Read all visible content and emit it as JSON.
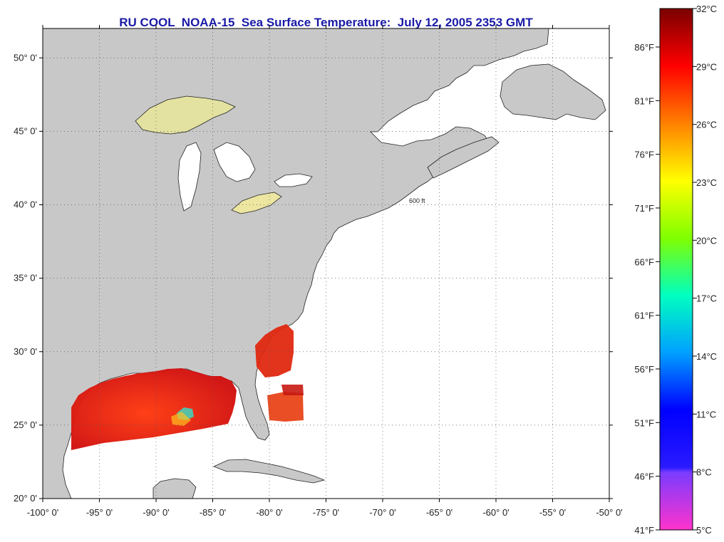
{
  "title": "RU COOL  NOAA-15  Sea Surface Temperature:  July 12, 2005 2353 GMT",
  "map": {
    "lon_range": [
      -100,
      -50
    ],
    "lat_range": [
      20,
      52
    ],
    "lat_ticks": [
      {
        "value": 50,
        "label": "50° 0'"
      },
      {
        "value": 45,
        "label": "45° 0'"
      },
      {
        "value": 40,
        "label": "40° 0'"
      },
      {
        "value": 35,
        "label": "35° 0'"
      },
      {
        "value": 30,
        "label": "30° 0'"
      },
      {
        "value": 25,
        "label": "25° 0'"
      },
      {
        "value": 20,
        "label": "20° 0'"
      }
    ],
    "lon_ticks": [
      {
        "value": -100,
        "label": "-100° 0'"
      },
      {
        "value": -95,
        "label": "-95° 0'"
      },
      {
        "value": -90,
        "label": "-90° 0'"
      },
      {
        "value": -85,
        "label": "-85° 0'"
      },
      {
        "value": -80,
        "label": "-80° 0'"
      },
      {
        "value": -75,
        "label": "-75° 0'"
      },
      {
        "value": -70,
        "label": "-70° 0'"
      },
      {
        "value": -65,
        "label": "-65° 0'"
      },
      {
        "value": -60,
        "label": "-60° 0'"
      },
      {
        "value": -55,
        "label": "-55° 0'"
      },
      {
        "value": -50,
        "label": "-50° 0'"
      }
    ],
    "isobath_label": "600 ft",
    "colors": {
      "land": "#c8c8c8",
      "ocean": "#ffffff",
      "grid": "#555555"
    }
  },
  "colorbar": {
    "celsius": [
      "32°C",
      "29°C",
      "26°C",
      "23°C",
      "20°C",
      "17°C",
      "14°C",
      "11°C",
      "8°C",
      "5°C"
    ],
    "fahrenheit": [
      "86°F",
      "81°F",
      "76°F",
      "71°F",
      "66°F",
      "61°F",
      "56°F",
      "51°F",
      "46°F",
      "41°F"
    ],
    "stops": [
      "#7a0000",
      "#ff0000",
      "#ff8000",
      "#ffff00",
      "#80ff00",
      "#00ffa0",
      "#00c8ff",
      "#0000ff",
      "#7a3cff",
      "#ff33cc"
    ]
  }
}
